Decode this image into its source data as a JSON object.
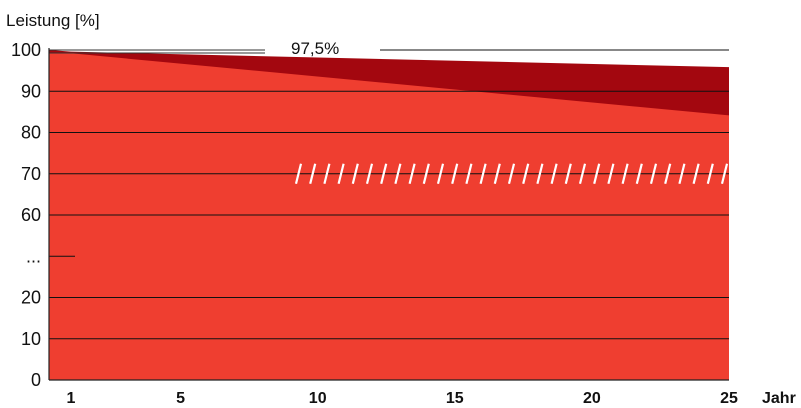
{
  "chart_data": {
    "type": "area",
    "ylabel": "Leistung [%]",
    "xlabel": "Jahr",
    "x_ticks": [
      1,
      5,
      10,
      15,
      20,
      25
    ],
    "y_ticks": [
      "0",
      "10",
      "20",
      "...",
      "60",
      "70",
      "80",
      "90",
      "100"
    ],
    "xlim": [
      0.2,
      25
    ],
    "ylim": [
      0,
      100
    ],
    "grid": true,
    "axis_break": true,
    "annotation": "97,5%",
    "series": [
      {
        "color": "#a3070f",
        "x": [
          0.2,
          1,
          25
        ],
        "y": [
          100,
          99.5,
          94.8
        ]
      },
      {
        "color": "#ef3e30",
        "x": [
          0.2,
          1,
          25
        ],
        "y": [
          99,
          99,
          80.2
        ]
      }
    ]
  }
}
